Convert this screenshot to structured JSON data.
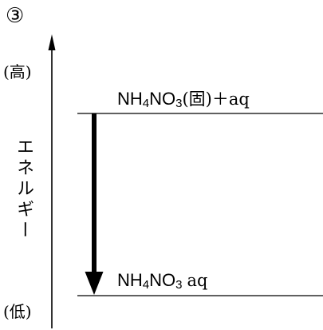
{
  "figure_number": "③",
  "axis": {
    "label": "エネルギー",
    "high": "(高)",
    "low": "(低)"
  },
  "levels": [
    {
      "formula": [
        "NH",
        "4",
        "NO",
        "3"
      ],
      "suffix": "(固)＋aq"
    },
    {
      "formula": [
        "NH",
        "4",
        "NO",
        "3"
      ],
      "suffix": "aq"
    }
  ]
}
